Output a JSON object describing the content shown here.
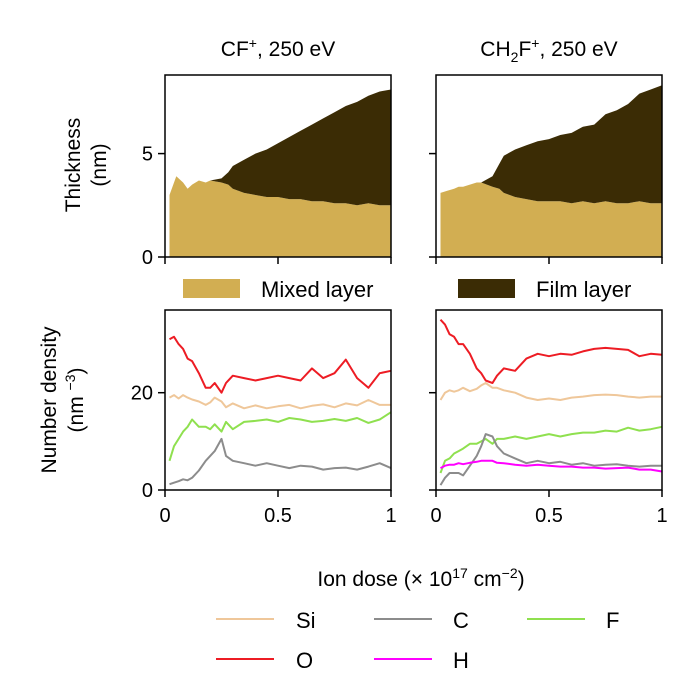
{
  "chart_data": [
    {
      "type": "area",
      "title_base": "CF",
      "title_sup": "+",
      "title_rest": ", 250 eV",
      "ylabel_line1": "Thickness",
      "ylabel_line2": "(nm)",
      "xlim": [
        0,
        1
      ],
      "ylim": [
        0,
        8.8
      ],
      "y_ticks": [
        0,
        5
      ],
      "x": [
        0.02,
        0.05,
        0.08,
        0.1,
        0.12,
        0.15,
        0.18,
        0.2,
        0.25,
        0.28,
        0.3,
        0.35,
        0.4,
        0.45,
        0.5,
        0.55,
        0.6,
        0.65,
        0.7,
        0.75,
        0.8,
        0.85,
        0.9,
        0.95,
        1.0
      ],
      "series": [
        {
          "name": "Mixed layer",
          "color": "#d2ae52",
          "values": [
            3.0,
            3.9,
            3.6,
            3.3,
            3.5,
            3.7,
            3.6,
            3.7,
            3.6,
            3.5,
            3.3,
            3.1,
            3.0,
            2.9,
            2.9,
            2.8,
            2.8,
            2.7,
            2.7,
            2.6,
            2.6,
            2.5,
            2.6,
            2.5,
            2.5
          ]
        },
        {
          "name": "Film layer",
          "color": "#3b2c05",
          "values": [
            0,
            0,
            0,
            0,
            0,
            0,
            0,
            0,
            0.2,
            0.6,
            1.1,
            1.6,
            2.0,
            2.3,
            2.6,
            3.0,
            3.3,
            3.7,
            4.0,
            4.4,
            4.7,
            5.0,
            5.2,
            5.5,
            5.6
          ]
        }
      ]
    },
    {
      "type": "area",
      "title_base": "CH",
      "title_sub": "2",
      "title_base2": "F",
      "title_sup": "+",
      "title_rest": ", 250 eV",
      "xlim": [
        0,
        1
      ],
      "ylim": [
        0,
        8.8
      ],
      "x": [
        0.02,
        0.05,
        0.08,
        0.1,
        0.12,
        0.15,
        0.18,
        0.2,
        0.25,
        0.28,
        0.3,
        0.35,
        0.4,
        0.45,
        0.5,
        0.55,
        0.6,
        0.65,
        0.7,
        0.75,
        0.8,
        0.85,
        0.9,
        0.95,
        1.0
      ],
      "series": [
        {
          "name": "Mixed layer",
          "color": "#d2ae52",
          "values": [
            3.1,
            3.2,
            3.3,
            3.4,
            3.4,
            3.5,
            3.6,
            3.6,
            3.4,
            3.3,
            3.1,
            2.9,
            2.8,
            2.7,
            2.7,
            2.7,
            2.6,
            2.7,
            2.6,
            2.7,
            2.6,
            2.6,
            2.7,
            2.6,
            2.6
          ]
        },
        {
          "name": "Film layer",
          "color": "#3b2c05",
          "values": [
            0,
            0,
            0,
            0,
            0,
            0,
            0,
            0,
            0.5,
            1.2,
            1.8,
            2.3,
            2.6,
            2.9,
            3.0,
            3.2,
            3.4,
            3.6,
            3.8,
            4.2,
            4.5,
            4.8,
            5.2,
            5.5,
            5.7
          ]
        }
      ]
    },
    {
      "type": "line",
      "ylabel_line1": "Number density",
      "ylabel_line2_base": "(nm ",
      "ylabel_line2_sup": "−3",
      "ylabel_line2_end": ")",
      "xlim": [
        0,
        1
      ],
      "ylim": [
        0,
        37
      ],
      "x_ticks": [
        "0",
        "0.5",
        "1"
      ],
      "x_tick_values": [
        0,
        0.5,
        1
      ],
      "y_ticks": [
        0,
        20
      ],
      "x": [
        0.02,
        0.04,
        0.06,
        0.08,
        0.1,
        0.12,
        0.15,
        0.18,
        0.2,
        0.22,
        0.25,
        0.27,
        0.3,
        0.35,
        0.4,
        0.45,
        0.5,
        0.55,
        0.6,
        0.65,
        0.7,
        0.75,
        0.8,
        0.85,
        0.9,
        0.95,
        1.0
      ],
      "series": [
        {
          "name": "Si",
          "color": "#efc79a",
          "values": [
            19,
            19.5,
            18.8,
            19.5,
            19,
            18.6,
            18.2,
            17.5,
            18,
            19,
            18.2,
            17,
            17.8,
            16.8,
            17.4,
            16.8,
            17.2,
            17.5,
            16.8,
            17.3,
            17.6,
            17,
            17.8,
            17.4,
            18.5,
            17.5,
            17.5
          ]
        },
        {
          "name": "O",
          "color": "#ed1c24",
          "values": [
            31,
            31.5,
            30,
            29,
            27,
            26.5,
            24,
            21,
            21,
            22,
            20,
            22,
            23.5,
            23,
            22.5,
            23,
            23.5,
            23,
            22.5,
            25,
            23,
            24,
            26.8,
            23,
            21,
            24,
            24.5
          ]
        },
        {
          "name": "F",
          "color": "#8fe04f",
          "values": [
            6,
            9,
            10.5,
            12,
            13,
            14.5,
            13,
            13,
            12.5,
            13.5,
            12,
            14,
            12.5,
            14,
            14.2,
            14.5,
            14,
            14.8,
            14.5,
            14,
            14.2,
            14.6,
            14.2,
            14.8,
            13.8,
            14.5,
            16
          ]
        },
        {
          "name": "C",
          "color": "#8c8c8c",
          "values": [
            1.2,
            1.5,
            1.8,
            2.2,
            2,
            2.5,
            4,
            6,
            7,
            8,
            10.5,
            7,
            6,
            5.5,
            5,
            5.5,
            5,
            4.5,
            5,
            4.8,
            4.2,
            4.5,
            4.6,
            4.2,
            4.8,
            5.5,
            4.5
          ]
        }
      ]
    },
    {
      "type": "line",
      "xlim": [
        0,
        1
      ],
      "ylim": [
        0,
        37
      ],
      "x_ticks": [
        "0",
        "0.5",
        "1"
      ],
      "x_tick_values": [
        0,
        0.5,
        1
      ],
      "x": [
        0.02,
        0.04,
        0.06,
        0.08,
        0.1,
        0.12,
        0.15,
        0.18,
        0.2,
        0.22,
        0.25,
        0.27,
        0.3,
        0.35,
        0.4,
        0.45,
        0.5,
        0.55,
        0.6,
        0.65,
        0.7,
        0.75,
        0.8,
        0.85,
        0.9,
        0.95,
        1.0
      ],
      "series": [
        {
          "name": "Si",
          "color": "#efc79a",
          "values": [
            18.5,
            20,
            20.5,
            20.2,
            20.5,
            21,
            20.3,
            20.8,
            21.5,
            22,
            21,
            21,
            20.5,
            20,
            19,
            18.5,
            18.8,
            18.5,
            19,
            19.2,
            19.5,
            19.6,
            19.5,
            19.2,
            19,
            19.2,
            19.2
          ]
        },
        {
          "name": "O",
          "color": "#ed1c24",
          "values": [
            35,
            34,
            32,
            31.5,
            30,
            30,
            28,
            25,
            24,
            22.5,
            22,
            23.5,
            25,
            24.5,
            27,
            28,
            27.5,
            28,
            27.8,
            28.5,
            29,
            29.2,
            29,
            28.8,
            27.5,
            28,
            27.8
          ]
        },
        {
          "name": "F",
          "color": "#8fe04f",
          "values": [
            3.5,
            6,
            6.5,
            7.5,
            8,
            8.5,
            9.5,
            9.5,
            10,
            10.5,
            9.5,
            10.5,
            10.5,
            11,
            10.5,
            11,
            11.5,
            11,
            11.5,
            11.8,
            11.8,
            12.2,
            12,
            12.8,
            12.2,
            12.5,
            13
          ]
        },
        {
          "name": "C",
          "color": "#8c8c8c",
          "values": [
            1,
            2.5,
            3.5,
            3.5,
            3.5,
            3,
            5,
            7,
            9,
            11.5,
            11,
            9,
            7.5,
            6.5,
            5.5,
            6,
            5.5,
            5.8,
            5.2,
            5.5,
            5,
            5.2,
            5.3,
            5,
            4.8,
            5,
            5
          ]
        },
        {
          "name": "H",
          "color": "#ff00ff",
          "values": [
            4.5,
            5,
            5.2,
            5.2,
            5.5,
            5.3,
            5.6,
            5.8,
            6,
            6,
            6,
            5.6,
            5.5,
            5.2,
            5,
            5.2,
            5,
            4.8,
            4.8,
            4.6,
            4.6,
            4.4,
            4.5,
            4.6,
            4.2,
            4.2,
            3.8
          ]
        }
      ]
    }
  ],
  "xlabel_base": "Ion dose (× 10",
  "xlabel_sup1": "17",
  "xlabel_mid": " cm",
  "xlabel_sup2": "−2",
  "xlabel_end": ")",
  "area_legend": [
    {
      "label": "Mixed layer",
      "color": "#d2ae52"
    },
    {
      "label": "Film layer",
      "color": "#3b2c05"
    }
  ],
  "line_legend": [
    {
      "label": "Si",
      "color": "#efc79a"
    },
    {
      "label": "C",
      "color": "#8c8c8c"
    },
    {
      "label": "F",
      "color": "#8fe04f"
    },
    {
      "label": "O",
      "color": "#ed1c24"
    },
    {
      "label": "H",
      "color": "#ff00ff"
    }
  ]
}
